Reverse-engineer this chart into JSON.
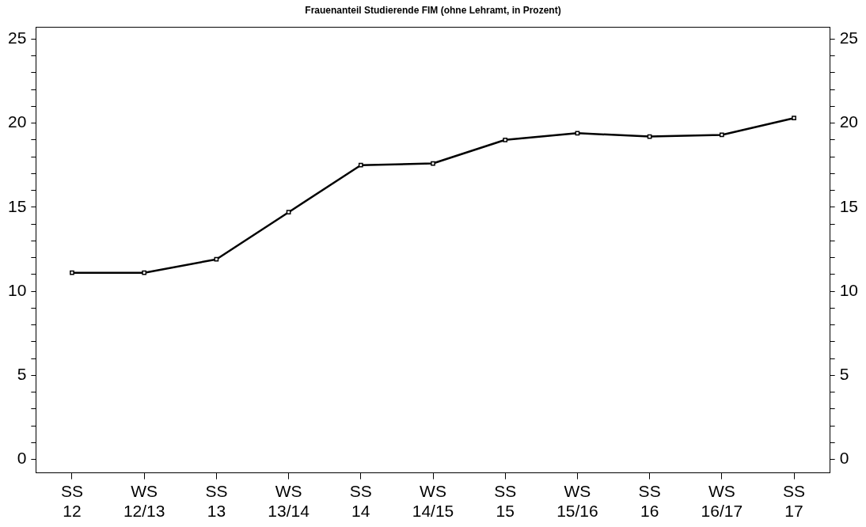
{
  "chart_data": {
    "type": "line",
    "title": "Frauenanteil Studierende FIM (ohne Lehramt, in Prozent)",
    "categories": [
      "SS\n12",
      "WS\n12/13",
      "SS\n13",
      "WS\n13/14",
      "SS\n14",
      "WS\n14/15",
      "SS\n15",
      "WS\n15/16",
      "SS\n16",
      "WS\n16/17",
      "SS\n17"
    ],
    "series": [
      {
        "color": "#000000",
        "values": [
          11.1,
          11.1,
          11.9,
          14.7,
          17.5,
          17.6,
          19.0,
          19.4,
          19.2,
          19.3,
          20.3
        ]
      }
    ],
    "ylim": [
      -0.8,
      25.7
    ],
    "yticks": [
      0,
      {
        "value": 1,
        "label": null
      },
      {
        "value": 2,
        "label": null
      },
      {
        "value": 3,
        "label": null
      },
      {
        "value": 4,
        "label": null
      },
      5,
      {
        "value": 6,
        "label": null
      },
      {
        "value": 7,
        "label": null
      },
      {
        "value": 8,
        "label": null
      },
      {
        "value": 9,
        "label": null
      },
      10,
      {
        "value": 11,
        "label": null
      },
      {
        "value": 12,
        "label": null
      },
      {
        "value": 13,
        "label": null
      },
      {
        "value": 14,
        "label": null
      },
      15,
      {
        "value": 16,
        "label": null
      },
      {
        "value": 17,
        "label": null
      },
      {
        "value": 18,
        "label": null
      },
      {
        "value": 19,
        "label": null
      },
      20,
      {
        "value": 21,
        "label": null
      },
      {
        "value": 22,
        "label": null
      },
      {
        "value": 23,
        "label": null
      },
      {
        "value": 24,
        "label": null
      },
      25
    ],
    "y2lim": [
      -0.8,
      25.7
    ],
    "y2ticks": [
      0,
      {
        "value": 1,
        "label": null
      },
      {
        "value": 2,
        "label": null
      },
      {
        "value": 3,
        "label": null
      },
      {
        "value": 4,
        "label": null
      },
      5,
      {
        "value": 6,
        "label": null
      },
      {
        "value": 7,
        "label": null
      },
      {
        "value": 8,
        "label": null
      },
      {
        "value": 9,
        "label": null
      },
      10,
      {
        "value": 11,
        "label": null
      },
      {
        "value": 12,
        "label": null
      },
      {
        "value": 13,
        "label": null
      },
      {
        "value": 14,
        "label": null
      },
      15,
      {
        "value": 16,
        "label": null
      },
      {
        "value": 17,
        "label": null
      },
      {
        "value": 18,
        "label": null
      },
      {
        "value": 19,
        "label": null
      },
      20,
      {
        "value": 21,
        "label": null
      },
      {
        "value": 22,
        "label": null
      },
      {
        "value": 23,
        "label": null
      },
      {
        "value": 24,
        "label": null
      },
      25
    ],
    "grid": false,
    "legend": false,
    "marker": "square",
    "line_style": "solid"
  }
}
